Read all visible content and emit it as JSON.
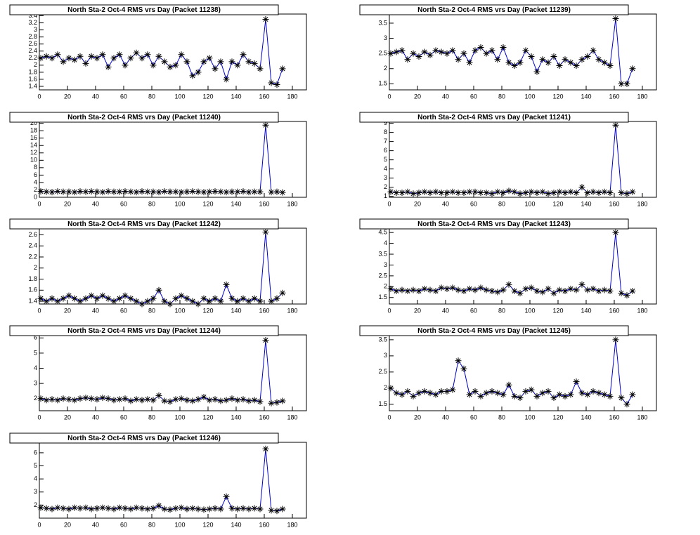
{
  "chart_data": [
    {
      "type": "line",
      "title": "North Sta-2 Oct-4 RMS vrs Day (Packet 11238)",
      "color": "#0000cc",
      "marker_color": "#000000",
      "x": [
        1,
        5,
        9,
        13,
        17,
        21,
        25,
        29,
        33,
        37,
        41,
        45,
        49,
        53,
        57,
        61,
        65,
        69,
        73,
        77,
        81,
        85,
        89,
        93,
        97,
        101,
        105,
        109,
        113,
        117,
        121,
        125,
        129,
        133,
        137,
        141,
        145,
        149,
        153,
        157,
        161,
        165,
        169,
        173
      ],
      "values": [
        2.2,
        2.25,
        2.2,
        2.3,
        2.1,
        2.2,
        2.15,
        2.25,
        2.05,
        2.25,
        2.2,
        2.3,
        1.95,
        2.2,
        2.3,
        2.0,
        2.2,
        2.35,
        2.2,
        2.3,
        2.0,
        2.25,
        2.1,
        1.95,
        2.0,
        2.3,
        2.1,
        1.7,
        1.8,
        2.1,
        2.2,
        1.9,
        2.1,
        1.6,
        2.1,
        2.0,
        2.3,
        2.1,
        2.05,
        1.9,
        3.3,
        1.5,
        1.45,
        1.9
      ],
      "xlim": [
        0,
        190
      ],
      "xticks": [
        0,
        20,
        40,
        60,
        80,
        100,
        120,
        140,
        160,
        180
      ],
      "ylim": [
        1.3,
        3.45
      ],
      "yticks": [
        1.4,
        1.6,
        1.8,
        2,
        2.2,
        2.4,
        2.6,
        2.8,
        3,
        3.2,
        3.4
      ]
    },
    {
      "type": "line",
      "title": "North Sta-2 Oct-4 RMS vrs Day (Packet 11239)",
      "color": "#0000cc",
      "marker_color": "#000000",
      "x": [
        1,
        5,
        9,
        13,
        17,
        21,
        25,
        29,
        33,
        37,
        41,
        45,
        49,
        53,
        57,
        61,
        65,
        69,
        73,
        77,
        81,
        85,
        89,
        93,
        97,
        101,
        105,
        109,
        113,
        117,
        121,
        125,
        129,
        133,
        137,
        141,
        145,
        149,
        153,
        157,
        161,
        165,
        169,
        173
      ],
      "values": [
        2.5,
        2.55,
        2.6,
        2.3,
        2.5,
        2.4,
        2.55,
        2.45,
        2.6,
        2.55,
        2.5,
        2.6,
        2.3,
        2.5,
        2.2,
        2.6,
        2.7,
        2.5,
        2.6,
        2.3,
        2.7,
        2.2,
        2.1,
        2.2,
        2.6,
        2.4,
        1.9,
        2.3,
        2.2,
        2.4,
        2.1,
        2.3,
        2.2,
        2.1,
        2.3,
        2.4,
        2.6,
        2.3,
        2.2,
        2.1,
        3.65,
        1.5,
        1.5,
        2.0
      ],
      "xlim": [
        0,
        190
      ],
      "xticks": [
        0,
        20,
        40,
        60,
        80,
        100,
        120,
        140,
        160,
        180
      ],
      "ylim": [
        1.3,
        3.8
      ],
      "yticks": [
        1.5,
        2,
        2.5,
        3,
        3.5
      ]
    },
    {
      "type": "line",
      "title": "North Sta-2 Oct-4 RMS vrs Day (Packet 11240)",
      "color": "#0000cc",
      "marker_color": "#000000",
      "x": [
        1,
        5,
        9,
        13,
        17,
        21,
        25,
        29,
        33,
        37,
        41,
        45,
        49,
        53,
        57,
        61,
        65,
        69,
        73,
        77,
        81,
        85,
        89,
        93,
        97,
        101,
        105,
        109,
        113,
        117,
        121,
        125,
        129,
        133,
        137,
        141,
        145,
        149,
        153,
        157,
        161,
        165,
        169,
        173
      ],
      "values": [
        1.6,
        1.5,
        1.4,
        1.6,
        1.5,
        1.5,
        1.4,
        1.6,
        1.5,
        1.6,
        1.5,
        1.4,
        1.6,
        1.5,
        1.5,
        1.6,
        1.5,
        1.4,
        1.6,
        1.5,
        1.5,
        1.4,
        1.6,
        1.5,
        1.5,
        1.4,
        1.5,
        1.6,
        1.5,
        1.4,
        1.5,
        1.6,
        1.5,
        1.4,
        1.5,
        1.5,
        1.6,
        1.4,
        1.5,
        1.5,
        19.5,
        1.4,
        1.5,
        1.3
      ],
      "xlim": [
        0,
        190
      ],
      "xticks": [
        0,
        20,
        40,
        60,
        80,
        100,
        120,
        140,
        160,
        180
      ],
      "ylim": [
        0,
        20.5
      ],
      "yticks": [
        0,
        2,
        4,
        6,
        8,
        10,
        12,
        14,
        16,
        18,
        20
      ]
    },
    {
      "type": "line",
      "title": "North Sta-2 Oct-4 RMS vrs Day (Packet 11241)",
      "color": "#0000cc",
      "marker_color": "#000000",
      "x": [
        1,
        5,
        9,
        13,
        17,
        21,
        25,
        29,
        33,
        37,
        41,
        45,
        49,
        53,
        57,
        61,
        65,
        69,
        73,
        77,
        81,
        85,
        89,
        93,
        97,
        101,
        105,
        109,
        113,
        117,
        121,
        125,
        129,
        133,
        137,
        141,
        145,
        149,
        153,
        157,
        161,
        165,
        169,
        173
      ],
      "values": [
        1.5,
        1.4,
        1.4,
        1.5,
        1.3,
        1.4,
        1.5,
        1.4,
        1.5,
        1.4,
        1.4,
        1.5,
        1.4,
        1.4,
        1.5,
        1.5,
        1.4,
        1.4,
        1.3,
        1.5,
        1.4,
        1.6,
        1.5,
        1.3,
        1.4,
        1.5,
        1.4,
        1.5,
        1.3,
        1.4,
        1.5,
        1.4,
        1.5,
        1.4,
        2.0,
        1.4,
        1.5,
        1.4,
        1.5,
        1.4,
        8.8,
        1.4,
        1.3,
        1.5
      ],
      "xlim": [
        0,
        190
      ],
      "xticks": [
        0,
        20,
        40,
        60,
        80,
        100,
        120,
        140,
        160,
        180
      ],
      "ylim": [
        0.9,
        9.2
      ],
      "yticks": [
        1,
        2,
        3,
        4,
        5,
        6,
        7,
        8,
        9
      ]
    },
    {
      "type": "line",
      "title": "North Sta-2 Oct-4 RMS vrs Day (Packet 11242)",
      "color": "#0000cc",
      "marker_color": "#000000",
      "x": [
        1,
        5,
        9,
        13,
        17,
        21,
        25,
        29,
        33,
        37,
        41,
        45,
        49,
        53,
        57,
        61,
        65,
        69,
        73,
        77,
        81,
        85,
        89,
        93,
        97,
        101,
        105,
        109,
        113,
        117,
        121,
        125,
        129,
        133,
        137,
        141,
        145,
        149,
        153,
        157,
        161,
        165,
        169,
        173
      ],
      "values": [
        1.45,
        1.4,
        1.45,
        1.4,
        1.45,
        1.5,
        1.45,
        1.4,
        1.45,
        1.5,
        1.45,
        1.5,
        1.45,
        1.4,
        1.45,
        1.5,
        1.45,
        1.4,
        1.35,
        1.4,
        1.45,
        1.6,
        1.4,
        1.35,
        1.45,
        1.5,
        1.45,
        1.4,
        1.35,
        1.45,
        1.4,
        1.45,
        1.4,
        1.7,
        1.45,
        1.4,
        1.45,
        1.4,
        1.45,
        1.4,
        2.65,
        1.4,
        1.45,
        1.55
      ],
      "xlim": [
        0,
        190
      ],
      "xticks": [
        0,
        20,
        40,
        60,
        80,
        100,
        120,
        140,
        160,
        180
      ],
      "ylim": [
        1.35,
        2.72
      ],
      "yticks": [
        1.4,
        1.6,
        1.8,
        2,
        2.2,
        2.4,
        2.6
      ]
    },
    {
      "type": "line",
      "title": "North Sta-2 Oct-4 RMS vrs Day (Packet 11243)",
      "color": "#0000cc",
      "marker_color": "#000000",
      "x": [
        1,
        5,
        9,
        13,
        17,
        21,
        25,
        29,
        33,
        37,
        41,
        45,
        49,
        53,
        57,
        61,
        65,
        69,
        73,
        77,
        81,
        85,
        89,
        93,
        97,
        101,
        105,
        109,
        113,
        117,
        121,
        125,
        129,
        133,
        137,
        141,
        145,
        149,
        153,
        157,
        161,
        165,
        169,
        173
      ],
      "values": [
        1.9,
        1.8,
        1.85,
        1.8,
        1.85,
        1.8,
        1.9,
        1.85,
        1.8,
        1.95,
        1.9,
        1.95,
        1.85,
        1.8,
        1.9,
        1.85,
        1.95,
        1.85,
        1.8,
        1.75,
        1.85,
        2.1,
        1.8,
        1.7,
        1.9,
        1.95,
        1.8,
        1.75,
        1.9,
        1.7,
        1.85,
        1.8,
        1.9,
        1.85,
        2.1,
        1.85,
        1.9,
        1.8,
        1.85,
        1.8,
        4.5,
        1.7,
        1.6,
        1.8
      ],
      "xlim": [
        0,
        190
      ],
      "xticks": [
        0,
        20,
        40,
        60,
        80,
        100,
        120,
        140,
        160,
        180
      ],
      "ylim": [
        1.2,
        4.7
      ],
      "yticks": [
        1.5,
        2,
        2.5,
        3,
        3.5,
        4,
        4.5
      ]
    },
    {
      "type": "line",
      "title": "North Sta-2 Oct-4 RMS vrs Day (Packet 11244)",
      "color": "#0000cc",
      "marker_color": "#000000",
      "x": [
        1,
        5,
        9,
        13,
        17,
        21,
        25,
        29,
        33,
        37,
        41,
        45,
        49,
        53,
        57,
        61,
        65,
        69,
        73,
        77,
        81,
        85,
        89,
        93,
        97,
        101,
        105,
        109,
        113,
        117,
        121,
        125,
        129,
        133,
        137,
        141,
        145,
        149,
        153,
        157,
        161,
        165,
        169,
        173
      ],
      "values": [
        2.0,
        1.9,
        1.95,
        1.9,
        2.0,
        1.95,
        1.9,
        2.0,
        2.05,
        2.0,
        1.95,
        2.05,
        2.0,
        1.9,
        1.95,
        2.0,
        1.85,
        1.95,
        1.9,
        1.95,
        1.9,
        2.2,
        1.85,
        1.8,
        1.95,
        2.0,
        1.9,
        1.85,
        1.95,
        2.1,
        1.9,
        1.95,
        1.85,
        1.9,
        2.0,
        1.9,
        1.95,
        1.85,
        1.9,
        1.8,
        5.85,
        1.7,
        1.75,
        1.85
      ],
      "xlim": [
        0,
        190
      ],
      "xticks": [
        0,
        20,
        40,
        60,
        80,
        100,
        120,
        140,
        160,
        180
      ],
      "ylim": [
        1.2,
        6.2
      ],
      "yticks": [
        2,
        3,
        4,
        5,
        6
      ]
    },
    {
      "type": "line",
      "title": "North Sta-2 Oct-4 RMS vrs Day (Packet 11245)",
      "color": "#0000cc",
      "marker_color": "#000000",
      "x": [
        1,
        5,
        9,
        13,
        17,
        21,
        25,
        29,
        33,
        37,
        41,
        45,
        49,
        53,
        57,
        61,
        65,
        69,
        73,
        77,
        81,
        85,
        89,
        93,
        97,
        101,
        105,
        109,
        113,
        117,
        121,
        125,
        129,
        133,
        137,
        141,
        145,
        149,
        153,
        157,
        161,
        165,
        169,
        173
      ],
      "values": [
        2.0,
        1.85,
        1.8,
        1.9,
        1.75,
        1.85,
        1.9,
        1.85,
        1.8,
        1.9,
        1.9,
        1.95,
        2.85,
        2.6,
        1.8,
        1.9,
        1.75,
        1.85,
        1.9,
        1.85,
        1.8,
        2.1,
        1.75,
        1.7,
        1.9,
        1.95,
        1.75,
        1.85,
        1.9,
        1.7,
        1.8,
        1.75,
        1.8,
        2.2,
        1.85,
        1.8,
        1.9,
        1.85,
        1.8,
        1.75,
        3.5,
        1.7,
        1.5,
        1.8
      ],
      "xlim": [
        0,
        190
      ],
      "xticks": [
        0,
        20,
        40,
        60,
        80,
        100,
        120,
        140,
        160,
        180
      ],
      "ylim": [
        1.3,
        3.65
      ],
      "yticks": [
        1.5,
        2,
        2.5,
        3,
        3.5
      ]
    },
    {
      "type": "line",
      "title": "North Sta-2 Oct-4 RMS vrs Day (Packet 11246)",
      "color": "#0000cc",
      "marker_color": "#000000",
      "x": [
        1,
        5,
        9,
        13,
        17,
        21,
        25,
        29,
        33,
        37,
        41,
        45,
        49,
        53,
        57,
        61,
        65,
        69,
        73,
        77,
        81,
        85,
        89,
        93,
        97,
        101,
        105,
        109,
        113,
        117,
        121,
        125,
        129,
        133,
        137,
        141,
        145,
        149,
        153,
        157,
        161,
        165,
        169,
        173
      ],
      "values": [
        1.8,
        1.75,
        1.7,
        1.8,
        1.75,
        1.7,
        1.8,
        1.75,
        1.8,
        1.7,
        1.75,
        1.8,
        1.75,
        1.7,
        1.8,
        1.75,
        1.7,
        1.8,
        1.75,
        1.7,
        1.75,
        1.95,
        1.7,
        1.65,
        1.75,
        1.8,
        1.7,
        1.75,
        1.7,
        1.65,
        1.7,
        1.75,
        1.7,
        2.65,
        1.75,
        1.7,
        1.75,
        1.7,
        1.75,
        1.7,
        6.3,
        1.6,
        1.55,
        1.7
      ],
      "xlim": [
        0,
        190
      ],
      "xticks": [
        0,
        20,
        40,
        60,
        80,
        100,
        120,
        140,
        160,
        180
      ],
      "ylim": [
        1.0,
        6.8
      ],
      "yticks": [
        2,
        3,
        4,
        5,
        6
      ]
    }
  ]
}
